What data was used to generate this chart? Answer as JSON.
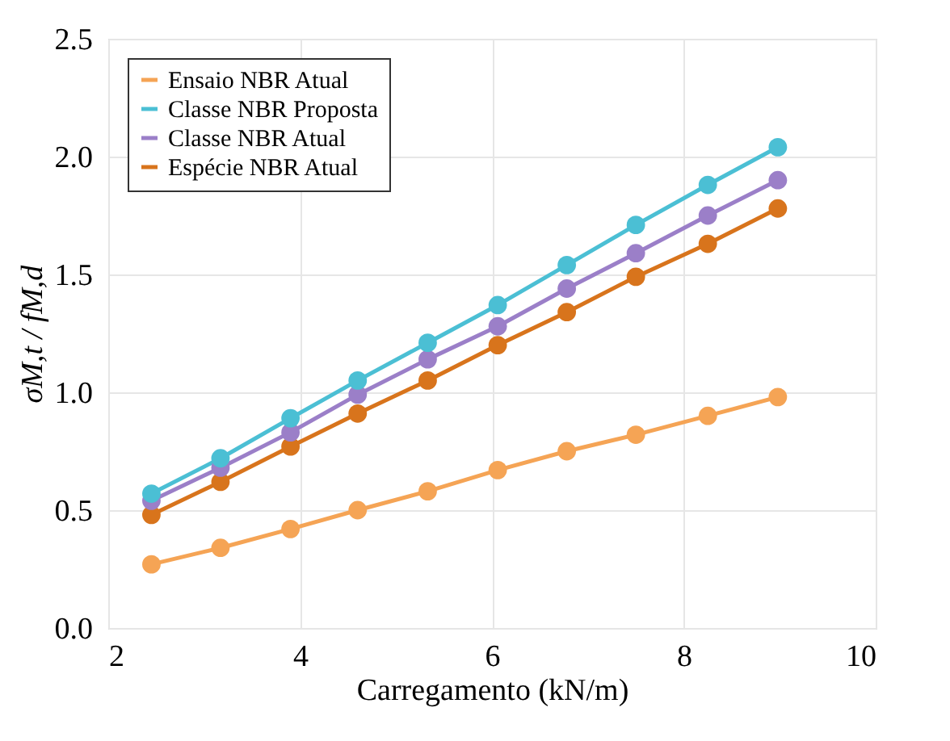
{
  "chart_data": {
    "type": "line",
    "xlabel": "Carregamento (kN/m)",
    "ylabel": "σM,t / fM,d",
    "x": [
      2.45,
      3.17,
      3.9,
      4.6,
      5.33,
      6.06,
      6.78,
      7.5,
      8.25,
      8.98
    ],
    "series": [
      {
        "name": "Ensaio NBR Atual",
        "color": "#f5a455",
        "values": [
          0.27,
          0.34,
          0.42,
          0.5,
          0.58,
          0.67,
          0.75,
          0.82,
          0.9,
          0.98
        ]
      },
      {
        "name": "Classe NBR Proposta",
        "color": "#4bbfd4",
        "values": [
          0.57,
          0.72,
          0.89,
          1.05,
          1.21,
          1.37,
          1.54,
          1.71,
          1.88,
          2.04
        ]
      },
      {
        "name": "Classe NBR Atual",
        "color": "#9b7fc8",
        "values": [
          0.54,
          0.68,
          0.83,
          0.99,
          1.14,
          1.28,
          1.44,
          1.59,
          1.75,
          1.9
        ]
      },
      {
        "name": "Espécie NBR Atual",
        "color": "#d8741c",
        "values": [
          0.48,
          0.62,
          0.77,
          0.91,
          1.05,
          1.2,
          1.34,
          1.49,
          1.63,
          1.78
        ]
      }
    ],
    "xlim": [
      2,
      10
    ],
    "xticks": [
      2,
      4,
      6,
      8,
      10
    ],
    "ylim": [
      0,
      2.5
    ],
    "yticks": [
      {
        "value": 0,
        "label": "0.0"
      },
      0.5,
      {
        "value": 1,
        "label": "1.0"
      },
      1.5,
      {
        "value": 2,
        "label": "2.0"
      },
      2.5
    ],
    "grid": true,
    "legend": "top left",
    "marker": "circle",
    "line_style": "solid"
  }
}
